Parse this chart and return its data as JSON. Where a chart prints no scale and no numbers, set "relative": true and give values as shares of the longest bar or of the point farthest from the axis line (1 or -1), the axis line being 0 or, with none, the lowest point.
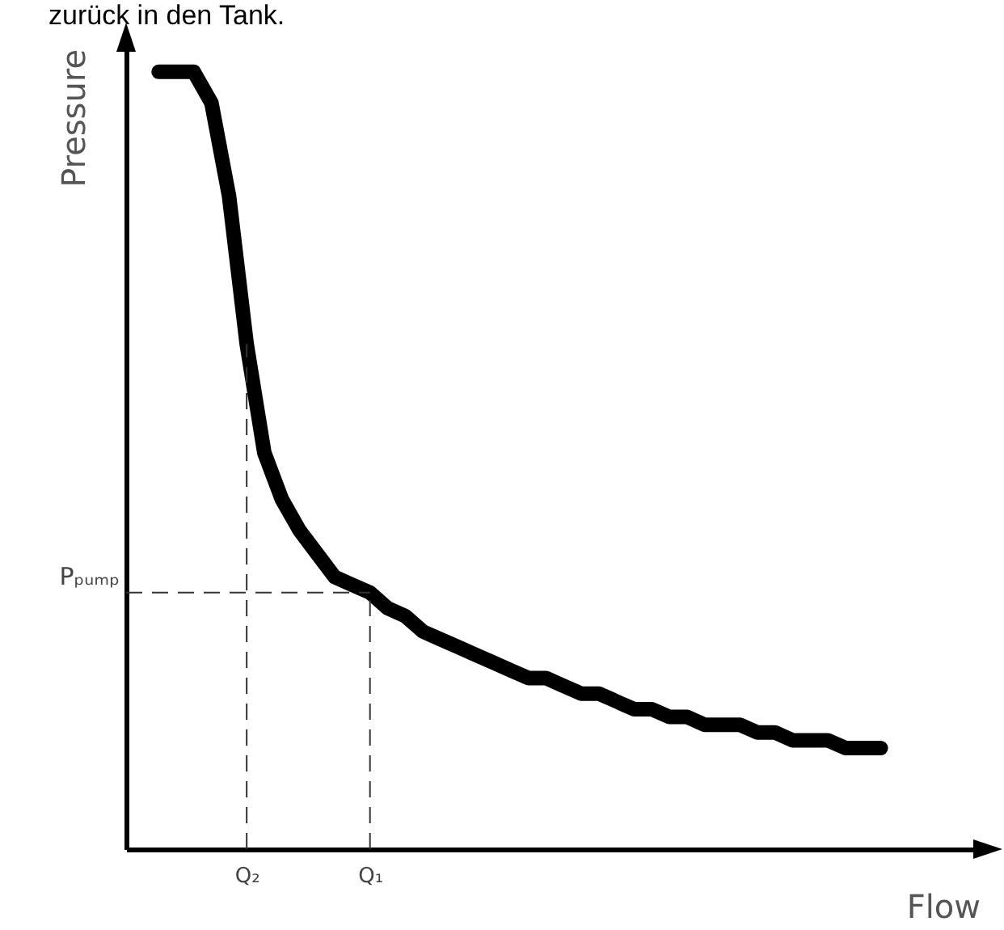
{
  "chart_data": {
    "type": "line",
    "relative": true,
    "color": "#000000",
    "tick_labels": "x",
    "grid": false,
    "xlabel": "Flow",
    "ylabel": "Pressure",
    "annotations": [
      "zurück in den Tank."
    ],
    "categories": [
      null,
      null,
      null,
      null,
      null,
      "Q₂",
      null,
      null,
      null,
      null,
      null,
      null,
      "Q₁",
      null,
      null,
      null,
      null,
      null,
      null,
      null,
      null,
      null,
      null,
      null,
      null,
      null,
      null,
      null,
      null,
      null,
      null,
      null,
      null,
      null,
      null,
      null,
      null,
      null,
      null,
      null,
      null,
      null
    ],
    "values": [
      1.0,
      1.0,
      1.0,
      0.96,
      0.84,
      0.65,
      0.51,
      0.45,
      0.41,
      0.38,
      0.35,
      0.34,
      0.33,
      0.31,
      0.3,
      0.28,
      0.27,
      0.26,
      0.25,
      0.24,
      0.23,
      0.22,
      0.22,
      0.21,
      0.2,
      0.2,
      0.19,
      0.18,
      0.18,
      0.17,
      0.17,
      0.16,
      0.16,
      0.16,
      0.15,
      0.15,
      0.14,
      0.14,
      0.14,
      0.13,
      0.13,
      0.13
    ],
    "ref_lines": [
      {
        "axis": "y",
        "value": 0.33,
        "label": "Pₚᵤₘₚ",
        "line_style": "dashed"
      },
      {
        "axis": "x",
        "value": "Q₂",
        "line_style": "dashed"
      },
      {
        "axis": "x",
        "value": "Q₁",
        "line_style": "dashed"
      }
    ]
  }
}
